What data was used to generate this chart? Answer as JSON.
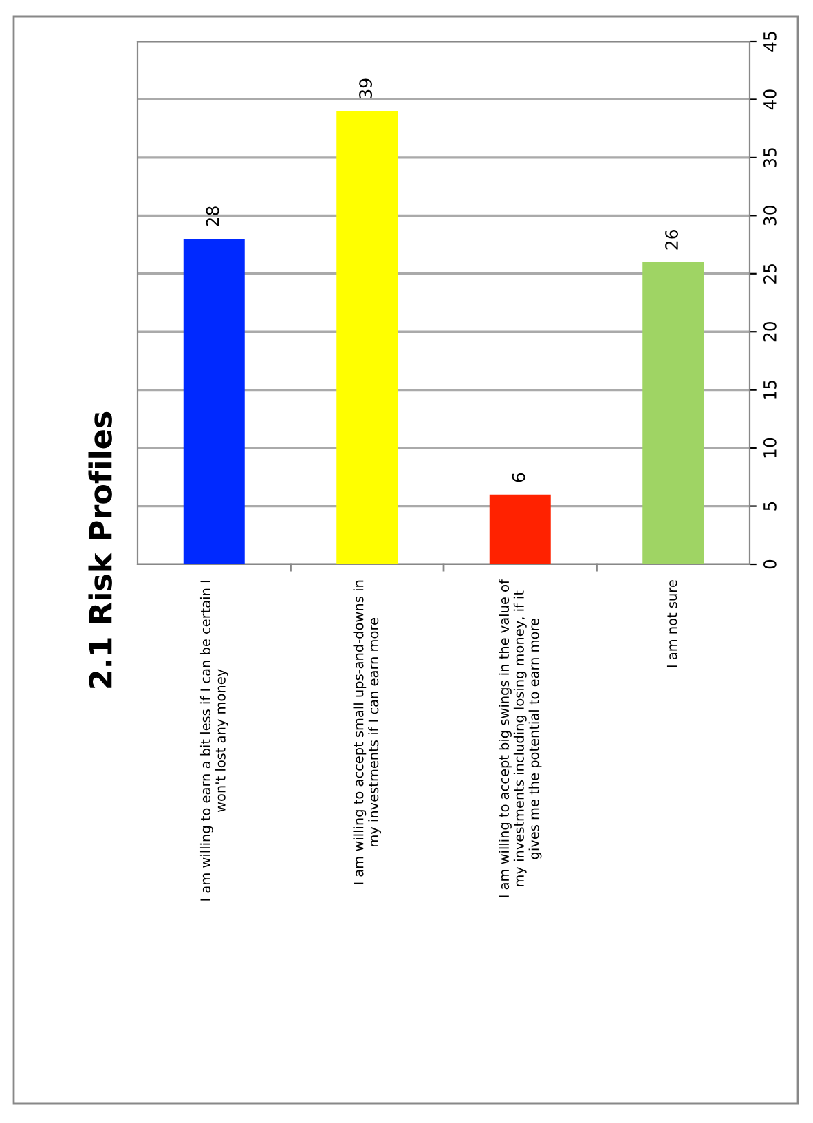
{
  "chart_data": {
    "type": "bar",
    "title": "2.1 Risk Profiles",
    "categories": [
      "I am willing to earn a bit less if I can be certain I\nwon't lost any money",
      "I am willing to accept small ups-and-downs in\nmy investments if I can earn more",
      "I am willing to accept big swings in the value of\nmy investments including losing money, if it\ngives me the potential to earn more",
      "I am not sure"
    ],
    "values": [
      28,
      39,
      6,
      26
    ],
    "colors": [
      "#0029ff",
      "#ffff00",
      "#ff2200",
      "#9fd464"
    ],
    "ylim": [
      0,
      45
    ],
    "yticks": [
      0,
      5,
      10,
      15,
      20,
      25,
      30,
      35,
      40,
      45
    ],
    "grid": "y",
    "data_labels": true
  }
}
